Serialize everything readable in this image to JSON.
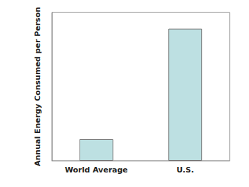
{
  "chart_data": {
    "type": "bar",
    "y_label": "Annual Energy Consumed per Person",
    "categories": [
      "World Average",
      "U.S."
    ],
    "values": [
      14.5,
      89
    ],
    "color": "#bde0e2",
    "ylim": [
      0,
      100
    ],
    "grid": false,
    "tick_labels": "x"
  }
}
